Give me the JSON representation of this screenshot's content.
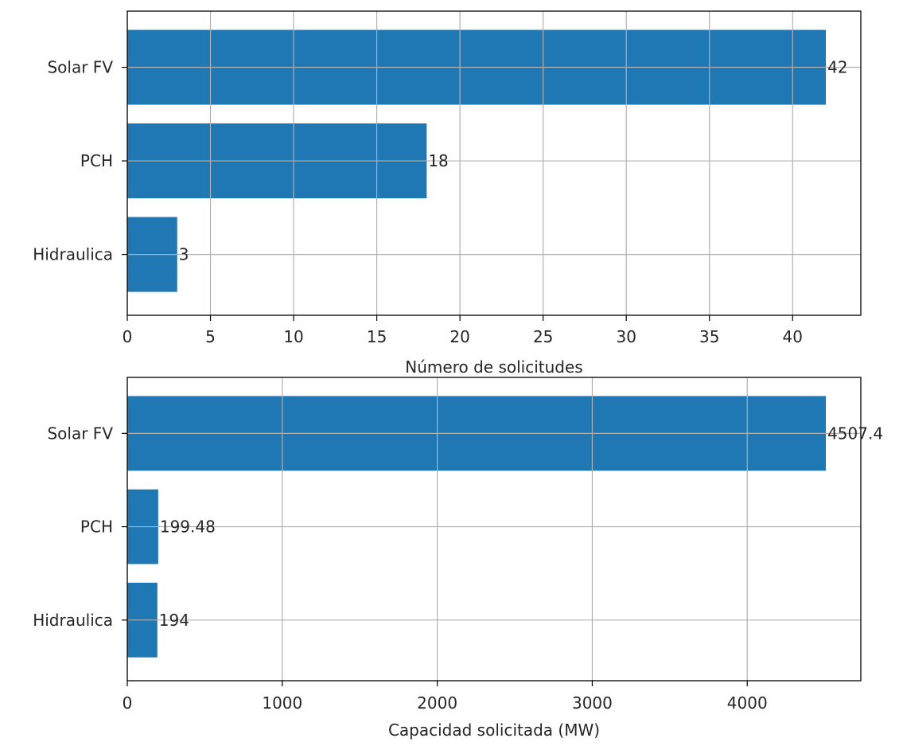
{
  "chart_data": [
    {
      "type": "bar",
      "orientation": "horizontal",
      "categories": [
        "Solar FV",
        "PCH",
        "Hidraulica"
      ],
      "values": [
        42,
        18,
        3
      ],
      "value_labels": [
        "42",
        "18",
        "3"
      ],
      "xlabel": "Número de solicitudes",
      "ylabel": "",
      "xlim": [
        0,
        44.1
      ],
      "xticks": [
        0,
        5,
        10,
        15,
        20,
        25,
        30,
        35,
        40
      ],
      "grid": true,
      "bar_color": "#1f77b4"
    },
    {
      "type": "bar",
      "orientation": "horizontal",
      "categories": [
        "Solar FV",
        "PCH",
        "Hidraulica"
      ],
      "values": [
        4507.4,
        199.48,
        194
      ],
      "value_labels": [
        "4507.4",
        "199.48",
        "194"
      ],
      "xlabel": "Capacidad solicitada (MW)",
      "ylabel": "",
      "xlim": [
        0,
        4732.8
      ],
      "xticks": [
        0,
        1000,
        2000,
        3000,
        4000
      ],
      "grid": true,
      "bar_color": "#1f77b4"
    }
  ]
}
